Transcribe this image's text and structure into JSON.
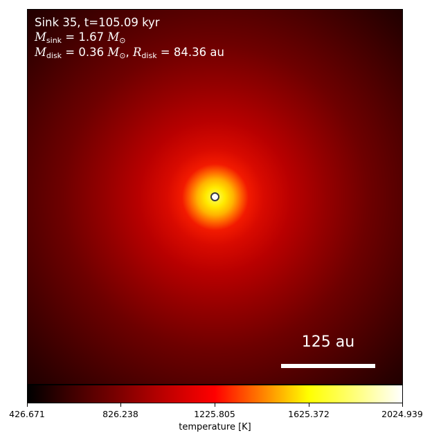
{
  "annotations": {
    "line1": "Sink 35, t=105.09 kyr",
    "mass_sink_symbol": "M",
    "mass_sink_sub": "sink",
    "mass_sink_value": " = 1.67 ",
    "mass_sink_unit": "M",
    "mass_sink_unit_sub": "⊙",
    "mass_disk_symbol": "M",
    "mass_disk_sub": "disk",
    "mass_disk_value": " = 0.36 ",
    "mass_disk_unit": "M",
    "mass_disk_unit_sub": "⊙",
    "separator": ", ",
    "radius_symbol": "R",
    "radius_sub": "disk",
    "radius_value": " = 84.36 au"
  },
  "scalebar": {
    "label": "125 au"
  },
  "colorbar": {
    "label": "temperature [K]",
    "ticks": [
      "426.671",
      "826.238",
      "1225.805",
      "1625.372",
      "2024.939"
    ],
    "colors": {
      "low": "#000000",
      "mid": "#ff0000",
      "high": "#ffffff"
    }
  }
}
